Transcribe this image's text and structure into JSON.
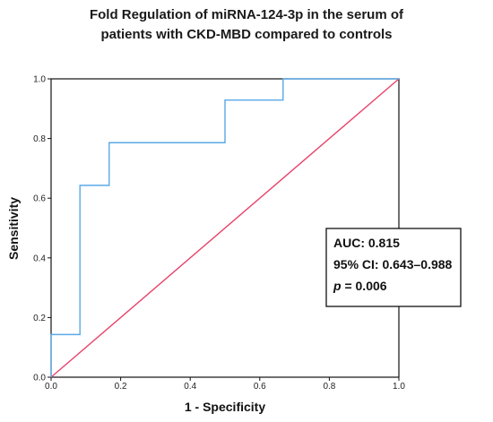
{
  "chart_data": {
    "type": "line",
    "title_line1": "Fold Regulation of miRNA-124-3p in the serum of",
    "title_line2": "patients with CKD-MBD compared to controls",
    "xlabel": "1 - Specificity",
    "ylabel": "Sensitivity",
    "xlim": [
      0,
      1
    ],
    "ylim": [
      0,
      1
    ],
    "x_ticks": [
      "0.0",
      "0.2",
      "0.4",
      "0.6",
      "0.8",
      "1.0"
    ],
    "y_ticks": [
      "0.0",
      "0.2",
      "0.4",
      "0.6",
      "0.8",
      "1.0"
    ],
    "grid": false,
    "series": [
      {
        "color": "#5aa9e6",
        "x": [
          0,
          0,
          0.083,
          0.083,
          0.167,
          0.167,
          0.5,
          0.5,
          0.667,
          0.667,
          1.0
        ],
        "y": [
          0,
          0.143,
          0.143,
          0.643,
          0.643,
          0.786,
          0.786,
          0.929,
          0.929,
          1.0,
          1.0
        ]
      },
      {
        "color": "#e8436b",
        "x": [
          0,
          1
        ],
        "y": [
          0,
          1
        ]
      }
    ],
    "annotation": {
      "auc": "AUC: 0.815",
      "ci": "95% CI: 0.643–0.988",
      "p_letter": "p",
      "p_rest": " = 0.006"
    }
  }
}
